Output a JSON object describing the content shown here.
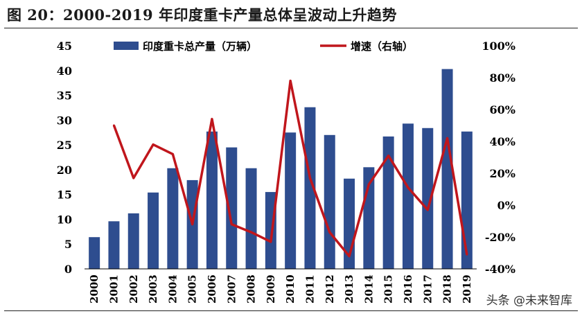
{
  "figure_title": "图 20：2000-2019 年印度重卡产量总体呈波动上升趋势",
  "watermark": "头条 @未来智库",
  "colors": {
    "bar": "#2E4D8F",
    "line": "#C0161C",
    "axis": "#000000"
  },
  "chart_data": {
    "type": "bar",
    "categories": [
      "2000",
      "2001",
      "2002",
      "2003",
      "2004",
      "2005",
      "2006",
      "2007",
      "2008",
      "2009",
      "2010",
      "2011",
      "2012",
      "2013",
      "2014",
      "2015",
      "2016",
      "2017",
      "2018",
      "2019"
    ],
    "series": [
      {
        "name": "印度重卡总产量（万辆）",
        "type": "bar",
        "axis": "left",
        "values": [
          6.4,
          9.6,
          11.2,
          15.4,
          20.3,
          17.9,
          27.7,
          24.5,
          20.3,
          15.5,
          27.5,
          32.6,
          27.0,
          18.2,
          20.5,
          26.7,
          29.3,
          28.4,
          40.3,
          27.7
        ]
      },
      {
        "name": "增速（右轴）",
        "type": "line",
        "axis": "right",
        "values": [
          null,
          0.5,
          0.17,
          0.38,
          0.32,
          -0.12,
          0.54,
          -0.12,
          -0.17,
          -0.23,
          0.78,
          0.17,
          -0.17,
          -0.32,
          0.13,
          0.31,
          0.11,
          -0.03,
          0.42,
          -0.31
        ]
      }
    ],
    "y_left": {
      "min": 0,
      "max": 45,
      "ticks": [
        0,
        5,
        10,
        15,
        20,
        25,
        30,
        35,
        40,
        45
      ]
    },
    "y_right": {
      "min": -0.4,
      "max": 1.0,
      "ticks": [
        -0.4,
        -0.2,
        0,
        0.2,
        0.4,
        0.6,
        0.8,
        1.0
      ],
      "tick_labels": [
        "-40%",
        "-20%",
        "0%",
        "20%",
        "40%",
        "60%",
        "80%",
        "100%"
      ]
    },
    "legend_position": "top",
    "grid": false
  }
}
